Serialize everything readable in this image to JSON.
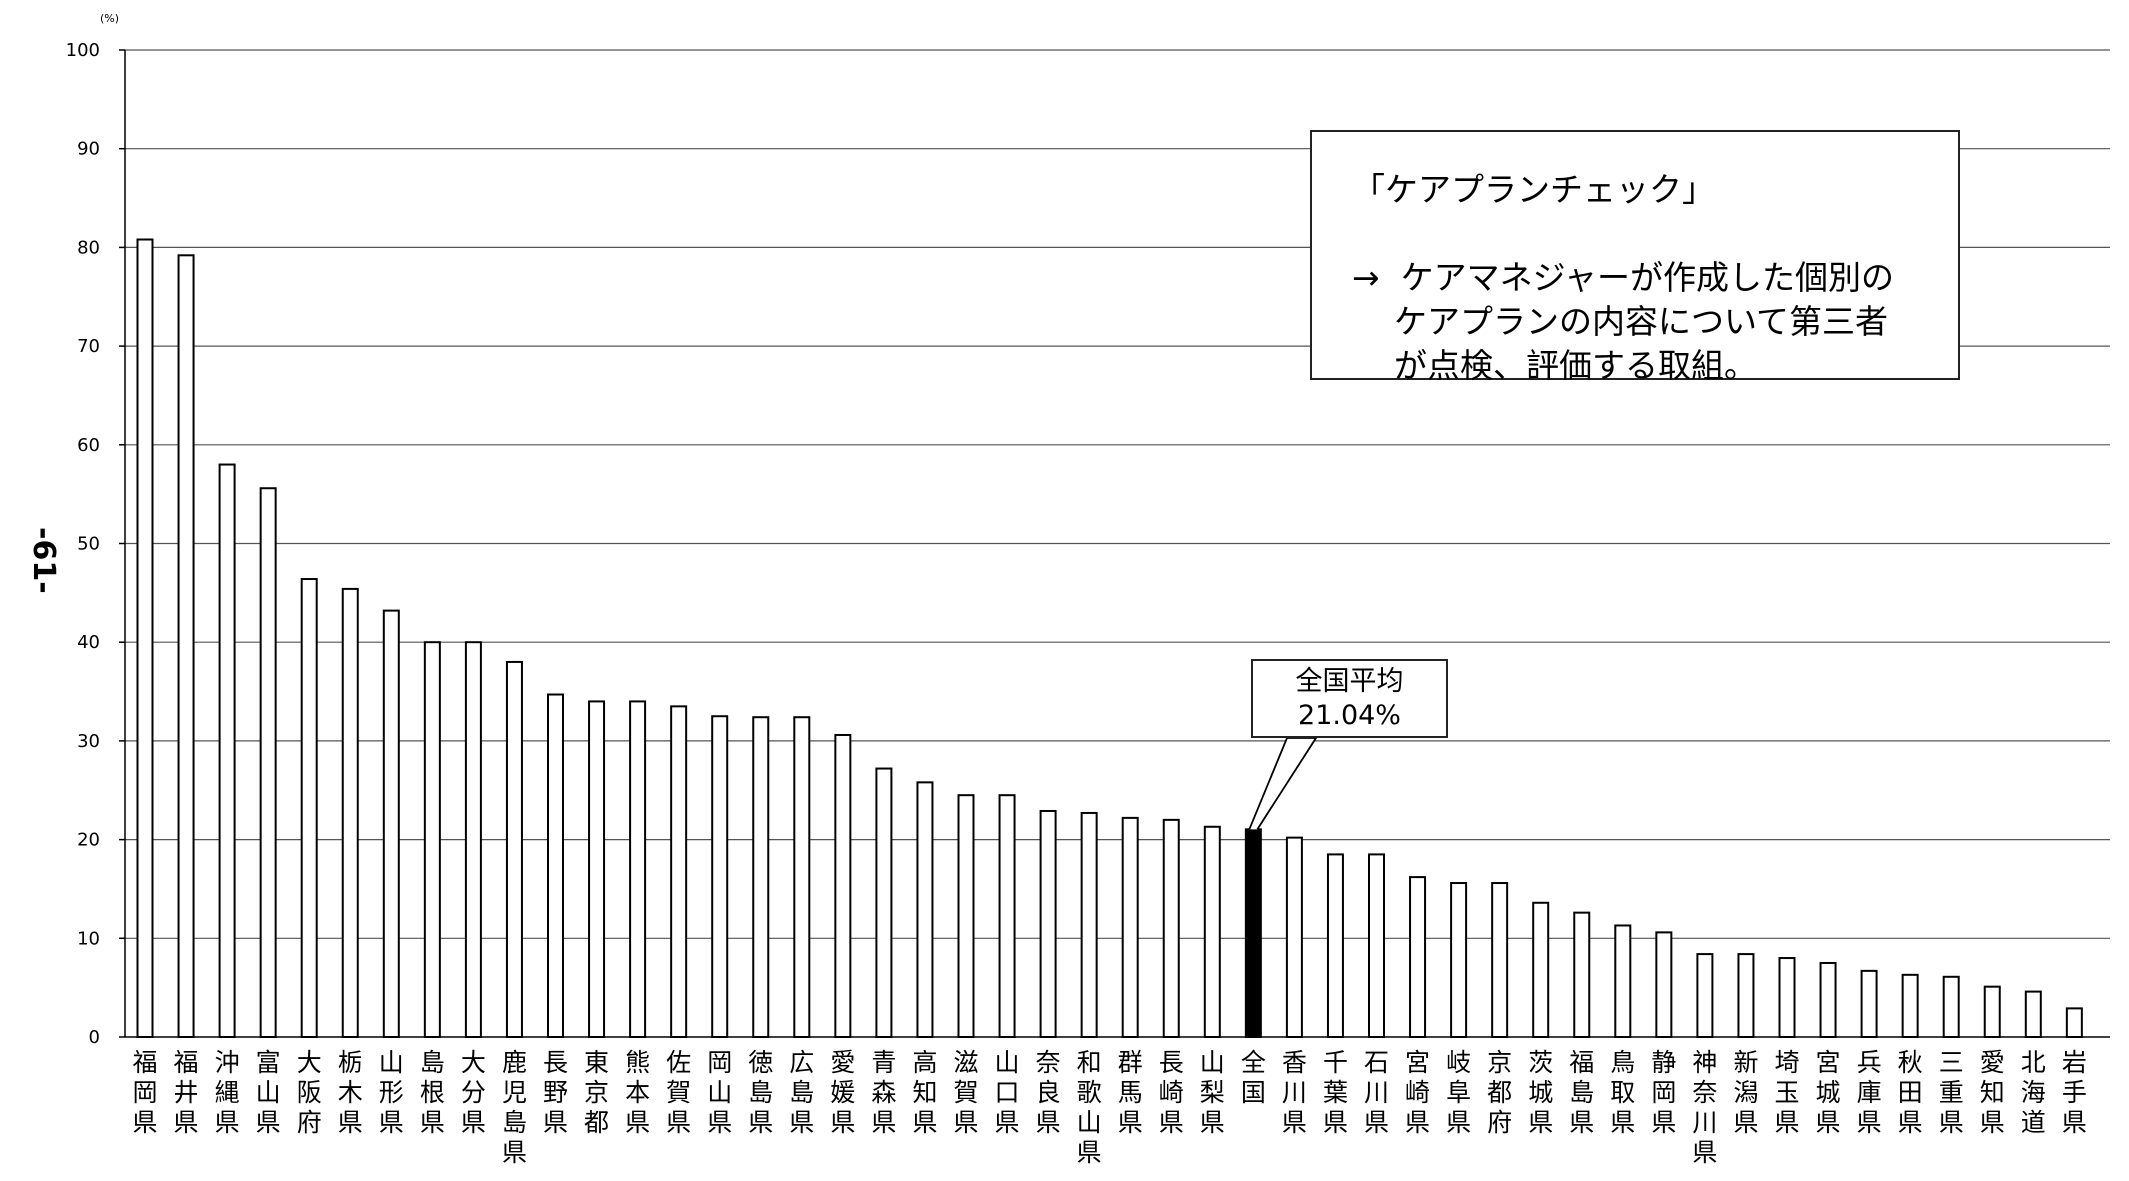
{
  "page_number": "-61-",
  "callout": {
    "title": "「ケアプランチェック」",
    "line1": "→  ケアマネジャーが作成した個別の",
    "line2": "    ケアプランの内容について第三者",
    "line3": "    が点検、評価する取組。"
  },
  "average_label": {
    "title": "全国平均",
    "value": "21.04%"
  },
  "chart_data": {
    "type": "bar",
    "unit_label": "(%)",
    "ylim": [
      0,
      100
    ],
    "yticks": [
      0,
      10,
      20,
      30,
      40,
      50,
      60,
      70,
      80,
      90,
      100
    ],
    "grid": true,
    "categories": [
      "福岡県",
      "福井県",
      "沖縄県",
      "富山県",
      "大阪府",
      "栃木県",
      "山形県",
      "島根県",
      "大分県",
      "鹿児島県",
      "長野県",
      "東京都",
      "熊本県",
      "佐賀県",
      "岡山県",
      "徳島県",
      "広島県",
      "愛媛県",
      "青森県",
      "高知県",
      "滋賀県",
      "山口県",
      "奈良県",
      "和歌山県",
      "群馬県",
      "長崎県",
      "山梨県",
      "全国",
      "香川県",
      "千葉県",
      "石川県",
      "宮崎県",
      "岐阜県",
      "京都府",
      "茨城県",
      "福島県",
      "鳥取県",
      "静岡県",
      "神奈川県",
      "新潟県",
      "埼玉県",
      "宮城県",
      "兵庫県",
      "秋田県",
      "三重県",
      "愛知県",
      "北海道",
      "岩手県"
    ],
    "values": [
      80.8,
      79.2,
      58.0,
      55.6,
      46.4,
      45.4,
      43.2,
      40.0,
      40.0,
      38.0,
      34.7,
      34.0,
      34.0,
      33.5,
      32.5,
      32.4,
      32.4,
      30.6,
      27.2,
      25.8,
      24.5,
      24.5,
      22.9,
      22.7,
      22.2,
      22.0,
      21.3,
      21.04,
      20.2,
      18.5,
      18.5,
      16.2,
      15.6,
      15.6,
      13.6,
      12.6,
      11.3,
      10.6,
      8.4,
      8.4,
      8.0,
      7.5,
      6.7,
      6.3,
      6.1,
      5.1,
      4.6,
      2.9
    ],
    "highlight_category": "全国",
    "colors": {
      "bar_fill": "#ffffff",
      "bar_stroke": "#000000",
      "highlight_fill": "#000000",
      "grid": "#555555"
    }
  }
}
